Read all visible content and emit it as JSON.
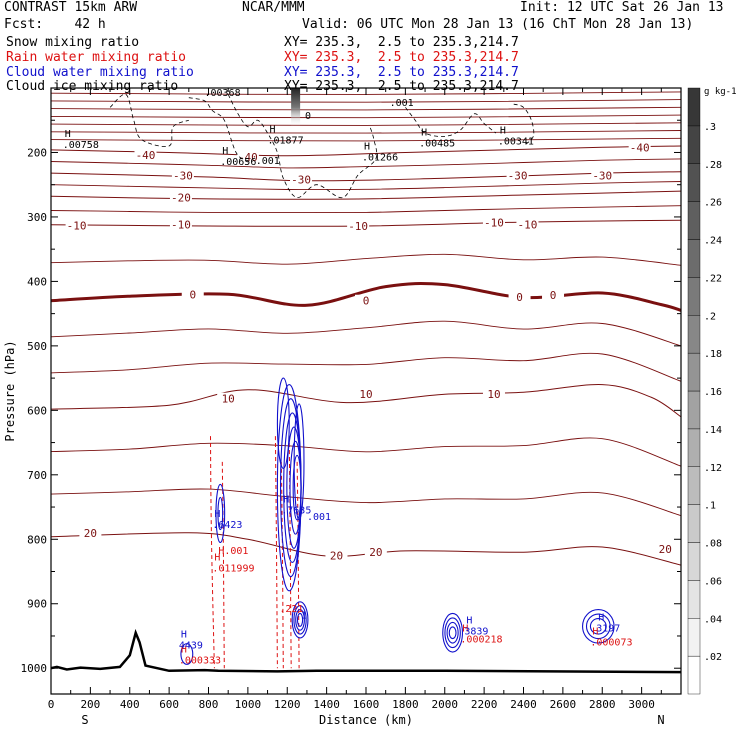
{
  "header": {
    "line1_left": "CONTRAST 15km ARW",
    "line1_center": "NCAR/MMM",
    "line1_right": "Init: 12 UTC Sat 26 Jan 13",
    "line2_left": "Fcst:    42 h",
    "line2_right": "Valid: 06 UTC Mon 28 Jan 13 (16 ChT Mon 28 Jan 13)",
    "fields": [
      {
        "name": "Snow mixing ratio",
        "xy": "XY= 235.3,  2.5 to 235.3,214.7",
        "color": "#000000"
      },
      {
        "name": "Rain water mixing ratio",
        "xy": "XY= 235.3,  2.5 to 235.3,214.7",
        "color": "#dd1111"
      },
      {
        "name": "Cloud water mixing ratio",
        "xy": "XY= 235.3,  2.5 to 235.3,214.7",
        "color": "#1111cc"
      },
      {
        "name": "Cloud ice mixing ratio",
        "xy": "XY= 235.3,  2.5 to 235.3,214.7",
        "color": "#000000"
      }
    ]
  },
  "chart_data": {
    "type": "contour",
    "xlabel": "Distance (km)",
    "ylabel": "Pressure (hPa)",
    "xlim": [
      0,
      3200
    ],
    "ylim": [
      1040,
      100
    ],
    "x_ticks": [
      0,
      200,
      400,
      600,
      800,
      1000,
      1200,
      1400,
      1600,
      1800,
      2000,
      2200,
      2400,
      2600,
      2800,
      3000
    ],
    "y_ticks": [
      200,
      300,
      400,
      500,
      600,
      700,
      800,
      900,
      1000
    ],
    "x_end_labels": {
      "left": "S",
      "right": "N"
    },
    "terrain": [
      [
        0,
        1000
      ],
      [
        30,
        998
      ],
      [
        80,
        1002
      ],
      [
        150,
        999
      ],
      [
        250,
        1001
      ],
      [
        350,
        998
      ],
      [
        400,
        980
      ],
      [
        430,
        945
      ],
      [
        450,
        960
      ],
      [
        480,
        996
      ],
      [
        600,
        1004
      ],
      [
        780,
        1003
      ],
      [
        850,
        1004
      ],
      [
        1150,
        1005
      ],
      [
        1350,
        1004
      ],
      [
        2000,
        1004
      ],
      [
        3200,
        1006
      ]
    ],
    "temperature_contours": [
      {
        "label": "-40",
        "points": [
          [
            0,
            196
          ],
          [
            600,
            200
          ],
          [
            1200,
            205
          ],
          [
            1800,
            200
          ],
          [
            2800,
            192
          ],
          [
            3200,
            190
          ]
        ],
        "label_at": [
          [
            480,
            204
          ],
          [
            1000,
            207
          ],
          [
            2990,
            192
          ]
        ]
      },
      {
        "label": "-30",
        "points": [
          [
            0,
            232
          ],
          [
            800,
            238
          ],
          [
            1300,
            244
          ],
          [
            2000,
            240
          ],
          [
            2800,
            232
          ],
          [
            3200,
            230
          ]
        ],
        "label_at": [
          [
            670,
            236
          ],
          [
            1270,
            242
          ],
          [
            2370,
            236
          ],
          [
            2800,
            236
          ]
        ]
      },
      {
        "label": "-20",
        "points": [
          [
            0,
            268
          ],
          [
            800,
            272
          ],
          [
            1600,
            272
          ],
          [
            2400,
            266
          ],
          [
            3200,
            260
          ]
        ],
        "label_at": [
          [
            660,
            270
          ]
        ]
      },
      {
        "label": "-10",
        "points": [
          [
            0,
            312
          ],
          [
            800,
            314
          ],
          [
            1600,
            314
          ],
          [
            2400,
            308
          ],
          [
            3200,
            305
          ]
        ],
        "label_at": [
          [
            130,
            313
          ],
          [
            660,
            312
          ],
          [
            1560,
            314
          ],
          [
            2250,
            309
          ],
          [
            2420,
            312
          ]
        ]
      },
      {
        "label": "0",
        "points": [
          [
            0,
            430
          ],
          [
            400,
            423
          ],
          [
            900,
            420
          ],
          [
            1300,
            437
          ],
          [
            1700,
            408
          ],
          [
            2000,
            405
          ],
          [
            2400,
            425
          ],
          [
            2800,
            418
          ],
          [
            3100,
            436
          ],
          [
            3200,
            445
          ]
        ],
        "label_at": [
          [
            720,
            420
          ],
          [
            1600,
            430
          ],
          [
            2380,
            424
          ],
          [
            2550,
            421
          ]
        ]
      },
      {
        "label": "10",
        "points": [
          [
            0,
            598
          ],
          [
            600,
            592
          ],
          [
            1000,
            568
          ],
          [
            1500,
            588
          ],
          [
            2000,
            575
          ],
          [
            2400,
            572
          ],
          [
            2800,
            560
          ],
          [
            3050,
            580
          ],
          [
            3200,
            610
          ]
        ],
        "label_at": [
          [
            900,
            582
          ],
          [
            1600,
            575
          ],
          [
            2250,
            575
          ]
        ]
      },
      {
        "label": "20",
        "points": [
          [
            0,
            796
          ],
          [
            700,
            790
          ],
          [
            1000,
            800
          ],
          [
            1400,
            826
          ],
          [
            1800,
            818
          ],
          [
            2400,
            820
          ],
          [
            2800,
            812
          ],
          [
            3200,
            840
          ]
        ],
        "label_at": [
          [
            200,
            790
          ],
          [
            1450,
            825
          ],
          [
            1650,
            820
          ],
          [
            3120,
            815
          ]
        ]
      }
    ],
    "isotherm_levels": [
      "-40",
      "-30",
      "-20",
      "-10",
      "0",
      "10",
      "20"
    ],
    "extrema": [
      {
        "field": "snow",
        "label": "H",
        "value": ".00758",
        "x": 90,
        "p": 185
      },
      {
        "field": "snow",
        "label": "H",
        "value": ".00368",
        "x": 810,
        "p": 105
      },
      {
        "field": "snow",
        "label": "H",
        "value": ".01877",
        "x": 1130,
        "p": 178
      },
      {
        "field": "snow",
        "label": "H",
        "value": ".00656",
        "x": 890,
        "p": 212
      },
      {
        "field": "snow",
        "label": "H",
        "value": ".01266",
        "x": 1610,
        "p": 205
      },
      {
        "field": "snow",
        "label": "H",
        "value": ".00485",
        "x": 1900,
        "p": 183
      },
      {
        "field": "snow",
        "label": "H",
        "value": ".00341",
        "x": 2300,
        "p": 180
      },
      {
        "field": "rain",
        "label": "H",
        "value": ".011999",
        "x": 850,
        "p": 842
      },
      {
        "field": "rain",
        "label": "H",
        "value": ".000218",
        "x": 2110,
        "p": 952
      },
      {
        "field": "rain",
        "label": "H",
        "value": ".000073",
        "x": 2770,
        "p": 957
      },
      {
        "field": "rain",
        "label": "H",
        "value": ".000333",
        "x": 680,
        "p": 985
      },
      {
        "field": "cloud",
        "label": "H",
        "value": ".7635",
        "x": 1200,
        "p": 752
      },
      {
        "field": "cloud",
        "label": "H",
        "value": ".6423",
        "x": 850,
        "p": 775
      },
      {
        "field": "cloud",
        "label": "H",
        "value": "3839",
        "x": 2130,
        "p": 940
      },
      {
        "field": "cloud",
        "label": "H",
        "value": "3197",
        "x": 2800,
        "p": 935
      },
      {
        "field": "cloud",
        "label": "H",
        "value": "4439",
        "x": 680,
        "p": 962
      }
    ],
    "contour_labels": [
      {
        "field": "snow",
        "text": ".001",
        "x": 1720,
        "p": 128
      },
      {
        "field": "snow",
        "text": ".001",
        "x": 1040,
        "p": 218
      },
      {
        "field": "snow",
        "text": "0",
        "x": 1290,
        "p": 148
      },
      {
        "field": "rain",
        "text": "H.001",
        "x": 850,
        "p": 823
      },
      {
        "field": "rain",
        "text": ".221",
        "x": 1160,
        "p": 913
      },
      {
        "field": "cloud",
        "text": ".001",
        "x": 1300,
        "p": 770
      },
      {
        "field": "cloud",
        "text": "1",
        "x": 1270,
        "p": 923
      }
    ],
    "colorbar": {
      "unit": "g kg-1",
      "levels": [
        ".02",
        ".04",
        ".06",
        ".08",
        ".1",
        ".12",
        ".14",
        ".16",
        ".18",
        ".2",
        ".22",
        ".24",
        ".26",
        ".28",
        ".3"
      ]
    }
  }
}
